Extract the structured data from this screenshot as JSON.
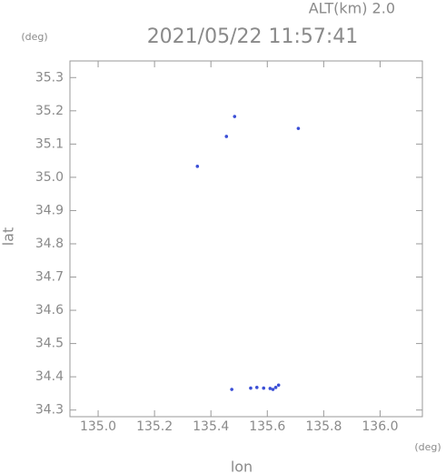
{
  "chart_data": {
    "type": "scatter",
    "altitude_label": "ALT(km) 2.0",
    "title": "2021/05/22 11:57:41",
    "y_unit": "(deg)",
    "x_unit": "(deg)",
    "xlabel": "lon",
    "ylabel": "lat",
    "color": "#3b4fd6",
    "xlim": [
      134.9,
      136.15
    ],
    "ylim": [
      34.28,
      35.35
    ],
    "xticks": [
      {
        "value": 135,
        "label": "135.0"
      },
      135.2,
      135.4,
      135.6,
      135.8,
      {
        "value": 136,
        "label": "136.0"
      }
    ],
    "yticks": [
      34.3,
      34.4,
      34.5,
      34.6,
      34.7,
      34.8,
      34.9,
      {
        "value": 35,
        "label": "35.0"
      },
      35.1,
      35.2,
      35.3
    ],
    "x": [
      135.352,
      135.484,
      135.455,
      135.71,
      135.474,
      135.541,
      135.563,
      135.587,
      135.61,
      135.62,
      135.63,
      135.64
    ],
    "y": [
      35.033,
      35.183,
      35.123,
      35.147,
      34.362,
      34.366,
      34.368,
      34.366,
      34.365,
      34.362,
      34.368,
      34.375
    ]
  }
}
